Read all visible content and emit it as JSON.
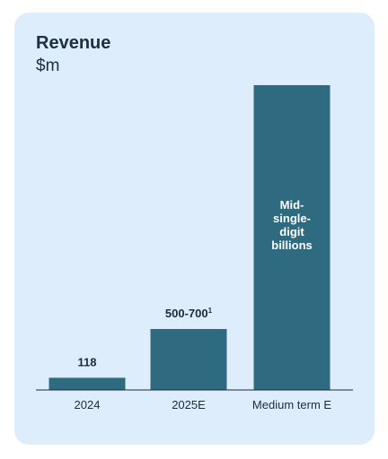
{
  "chart_data": {
    "type": "bar",
    "title": "Revenue",
    "subtitle": "$m",
    "categories": [
      "2024",
      "2025E",
      "Medium term E"
    ],
    "values": [
      118,
      600,
      null
    ],
    "data_labels": [
      "118",
      "500-700",
      "Mid-\nsingle-\ndigit\nbillions"
    ],
    "data_label_footnotes": [
      "",
      "1",
      ""
    ],
    "bar_fill_fraction": [
      0.04,
      0.2,
      1.0
    ],
    "bar_color": "#2e6a80",
    "background_color": "#deedfb",
    "grid": false,
    "legend": "none"
  }
}
